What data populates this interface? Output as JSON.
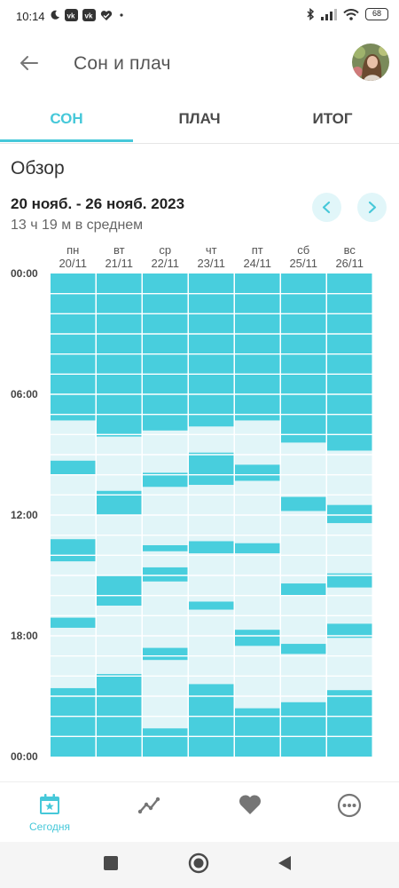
{
  "status_bar": {
    "time": "10:14",
    "battery": "68",
    "left_icons": [
      "moon-icon",
      "vk-icon",
      "vk-icon",
      "heart-check-icon",
      "dot-icon"
    ],
    "right_icons": [
      "bluetooth-icon",
      "signal-icon",
      "wifi-icon",
      "battery-icon"
    ]
  },
  "header": {
    "title": "Сон и плач"
  },
  "tabs": [
    {
      "label": "СОН",
      "active": true
    },
    {
      "label": "ПЛАЧ",
      "active": false
    },
    {
      "label": "ИТОГ",
      "active": false
    }
  ],
  "overview": {
    "title": "Обзор",
    "date_range": "20 нояб. - 26 нояб. 2023",
    "average": "13 ч 19 м в среднем"
  },
  "chart_data": {
    "type": "sleep-timeline",
    "days": [
      {
        "weekday": "пн",
        "date": "20/11",
        "sleep": [
          [
            0,
            7.3
          ],
          [
            9.3,
            10.0
          ],
          [
            13.2,
            14.3
          ],
          [
            17.1,
            17.6
          ],
          [
            20.6,
            24
          ]
        ]
      },
      {
        "weekday": "вт",
        "date": "21/11",
        "sleep": [
          [
            0,
            8.1
          ],
          [
            10.8,
            12.0
          ],
          [
            15.0,
            16.5
          ],
          [
            19.9,
            24
          ]
        ]
      },
      {
        "weekday": "ср",
        "date": "22/11",
        "sleep": [
          [
            0,
            7.8
          ],
          [
            9.9,
            10.6
          ],
          [
            13.5,
            13.8
          ],
          [
            14.6,
            15.3
          ],
          [
            18.6,
            19.2
          ],
          [
            22.6,
            24
          ]
        ]
      },
      {
        "weekday": "чт",
        "date": "23/11",
        "sleep": [
          [
            0,
            7.6
          ],
          [
            8.9,
            10.5
          ],
          [
            13.3,
            13.9
          ],
          [
            16.3,
            16.7
          ],
          [
            20.4,
            24
          ]
        ]
      },
      {
        "weekday": "пт",
        "date": "24/11",
        "sleep": [
          [
            0,
            7.3
          ],
          [
            9.5,
            10.3
          ],
          [
            13.4,
            13.9
          ],
          [
            17.7,
            18.5
          ],
          [
            21.6,
            24
          ]
        ]
      },
      {
        "weekday": "сб",
        "date": "25/11",
        "sleep": [
          [
            0,
            8.4
          ],
          [
            11.1,
            11.8
          ],
          [
            15.4,
            16.0
          ],
          [
            18.4,
            18.9
          ],
          [
            21.3,
            24
          ]
        ]
      },
      {
        "weekday": "вс",
        "date": "26/11",
        "sleep": [
          [
            0,
            8.8
          ],
          [
            11.5,
            12.4
          ],
          [
            14.9,
            15.6
          ],
          [
            17.4,
            18.1
          ],
          [
            20.7,
            24
          ]
        ]
      }
    ],
    "y_labels": [
      "00:00",
      "06:00",
      "12:00",
      "18:00",
      "00:00"
    ],
    "y_range": [
      0,
      24
    ],
    "grid": true,
    "colors": {
      "sleep": "#48cedd",
      "awake": "#e1f5f8",
      "grid": "#ffffff"
    }
  },
  "bottom_nav": [
    {
      "label": "Сегодня",
      "icon": "calendar-star-icon",
      "active": true
    },
    {
      "label": "",
      "icon": "trend-icon",
      "active": false
    },
    {
      "label": "",
      "icon": "heart-icon",
      "active": false
    },
    {
      "label": "",
      "icon": "more-icon",
      "active": false
    }
  ],
  "colors": {
    "accent": "#46c8d9",
    "inactive_icon": "#757575"
  }
}
